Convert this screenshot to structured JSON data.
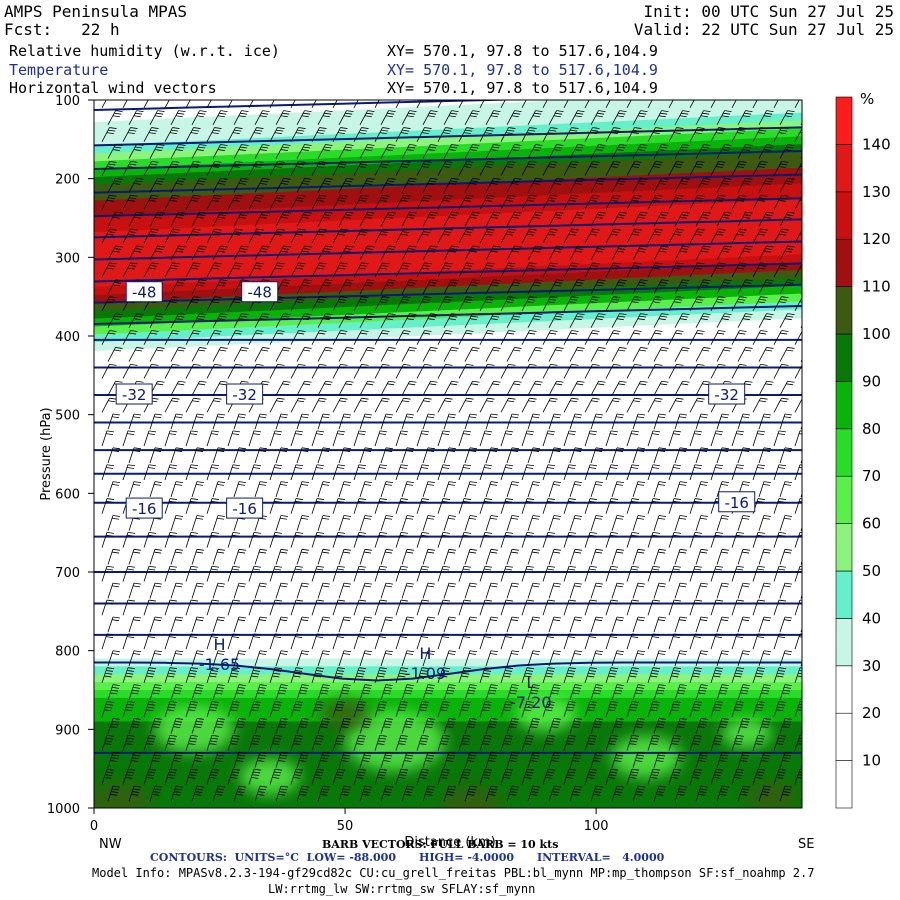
{
  "header": {
    "title": "AMPS Peninsula MPAS",
    "init": "Init: 00 UTC Sun 27 Jul 25",
    "fcst": "Fcst:   22 h",
    "valid": "Valid: 22 UTC Sun 27 Jul 25",
    "fields": [
      {
        "name": "Relative humidity (w.r.t. ice)",
        "xy": "XY= 570.1, 97.8 to 517.6,104.9"
      },
      {
        "name": "Temperature",
        "xy": "XY= 570.1, 97.8 to 517.6,104.9"
      },
      {
        "name": "Horizontal wind vectors",
        "xy": "XY= 570.1, 97.8 to 517.6,104.9"
      }
    ]
  },
  "chart_data": {
    "type": "heatmap",
    "ylabel": "Pressure (hPa)",
    "xlabel": "Distance (km)",
    "y_axis": {
      "range": [
        1000,
        100
      ],
      "ticks": [
        100,
        200,
        300,
        400,
        500,
        600,
        700,
        800,
        900,
        1000
      ]
    },
    "x_axis": {
      "range": [
        0,
        141
      ],
      "ticks": [
        0,
        50,
        100
      ],
      "left_end_label": "NW",
      "right_end_label": "SE"
    },
    "colorbar": {
      "unit": "%",
      "levels": [
        10,
        20,
        30,
        40,
        50,
        60,
        70,
        80,
        90,
        100,
        110,
        120,
        130,
        140
      ],
      "colors": [
        "#ffffff",
        "#ffffff",
        "#ffffff",
        "#c8f6e6",
        "#63f0cb",
        "#8cf47c",
        "#5af04a",
        "#28dc28",
        "#08b408",
        "#087808",
        "#3c5a10",
        "#a01010",
        "#c81010",
        "#e01818",
        "#ff1c1c"
      ]
    },
    "rh_profile_column": [
      {
        "p": 130,
        "rh": 35
      },
      {
        "p": 155,
        "rh": 75
      },
      {
        "p": 180,
        "rh": 100
      },
      {
        "p": 215,
        "rh": 115
      },
      {
        "p": 260,
        "rh": 140
      },
      {
        "p": 300,
        "rh": 135
      },
      {
        "p": 340,
        "rh": 105
      },
      {
        "p": 370,
        "rh": 55
      },
      {
        "p": 400,
        "rh": 20
      },
      {
        "p": 800,
        "rh": 20
      },
      {
        "p": 850,
        "rh": 75
      },
      {
        "p": 900,
        "rh": 95
      },
      {
        "p": 1000,
        "rh": 95
      }
    ],
    "temperature_labels": [
      {
        "x": 10,
        "p": 345,
        "text": "-48"
      },
      {
        "x": 33,
        "p": 345,
        "text": "-48"
      },
      {
        "x": 8,
        "p": 475,
        "text": "-32"
      },
      {
        "x": 30,
        "p": 475,
        "text": "-32"
      },
      {
        "x": 126,
        "p": 475,
        "text": "-32"
      },
      {
        "x": 10,
        "p": 620,
        "text": "-16"
      },
      {
        "x": 30,
        "p": 620,
        "text": "-16"
      },
      {
        "x": 128,
        "p": 612,
        "text": "-16"
      }
    ],
    "extrema": [
      {
        "x": 25,
        "p": 812,
        "label": "H",
        "value": "-1.65"
      },
      {
        "x": 66,
        "p": 823,
        "label": "H",
        "value": "-1.09"
      },
      {
        "x": 87,
        "p": 860,
        "label": "L",
        "value": "-7.20"
      }
    ],
    "isotherm_interval": 4.0,
    "barb_note": "BARB VECTORS: FULL BARB = 10 kts"
  },
  "footer": {
    "contours": "CONTOURS:  UNITS=°C  LOW= -88.000      HIGH= -4.0000      INTERVAL=   4.0000",
    "model_info": "Model Info: MPASv8.2.3-194-gf29cd82c CU:cu_grell_freitas PBL:bl_mynn MP:mp_thompson SF:sf_noahmp 2.7",
    "model_info2": "LW:rrtmg_lw SW:rrtmg_sw SFLAY:sf_mynn"
  }
}
